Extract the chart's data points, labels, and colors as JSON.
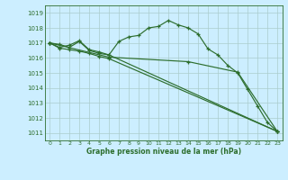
{
  "title": "Graphe pression niveau de la mer (hPa)",
  "background_color": "#cceeff",
  "grid_color": "#aacccc",
  "line_color": "#2d6e2d",
  "ylim": [
    1010.5,
    1019.5
  ],
  "xlim": [
    -0.5,
    23.5
  ],
  "yticks": [
    1011,
    1012,
    1013,
    1014,
    1015,
    1016,
    1017,
    1018,
    1019
  ],
  "xticks": [
    0,
    1,
    2,
    3,
    4,
    5,
    6,
    7,
    8,
    9,
    10,
    11,
    12,
    13,
    14,
    15,
    16,
    17,
    18,
    19,
    20,
    21,
    22,
    23
  ],
  "lines": [
    {
      "x": [
        0,
        1,
        2,
        3,
        4,
        5,
        6,
        7,
        8,
        9,
        10,
        11,
        12,
        13,
        14,
        15,
        16,
        17,
        18,
        19,
        20,
        21,
        22,
        23
      ],
      "y": [
        1017.0,
        1016.9,
        1016.7,
        1017.1,
        1016.5,
        1016.3,
        1016.2,
        1017.1,
        1017.4,
        1017.5,
        1018.0,
        1018.1,
        1018.5,
        1018.2,
        1018.0,
        1017.6,
        1016.6,
        1016.2,
        1015.5,
        1015.0,
        1013.9,
        1012.8,
        1011.7,
        1011.1
      ]
    },
    {
      "x": [
        0,
        1,
        2,
        3,
        4,
        5,
        6,
        23
      ],
      "y": [
        1017.0,
        1016.7,
        1016.85,
        1017.15,
        1016.55,
        1016.4,
        1016.2,
        1011.1
      ]
    },
    {
      "x": [
        0,
        1,
        2,
        3,
        4,
        5,
        6,
        23
      ],
      "y": [
        1017.0,
        1016.65,
        1016.55,
        1016.45,
        1016.3,
        1016.1,
        1015.95,
        1011.1
      ]
    },
    {
      "x": [
        0,
        6,
        14,
        19,
        23
      ],
      "y": [
        1017.0,
        1016.05,
        1015.75,
        1015.05,
        1011.1
      ]
    }
  ]
}
